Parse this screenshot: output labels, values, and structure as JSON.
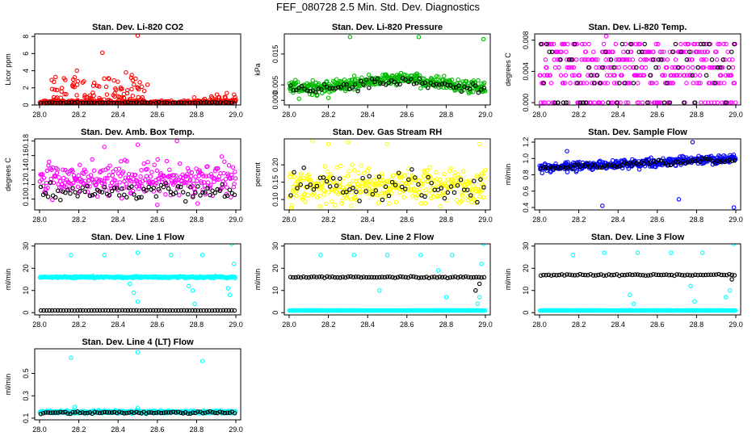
{
  "figure": {
    "title": "FEF_080728  2.5 Min. Std. Dev. Diagnostics"
  },
  "chart_data": [
    {
      "type": "scatter",
      "title": "Stan. Dev. Li-820 CO2",
      "ylabel": "Licor ppm",
      "xlim": [
        28.0,
        29.0
      ],
      "ylim": [
        0,
        8.3
      ],
      "xticks": [
        "28.0",
        "28.2",
        "28.4",
        "28.6",
        "28.8",
        "29.0"
      ],
      "yticks": [
        {
          "v": 0,
          "label": "0"
        },
        {
          "v": 2,
          "label": "2"
        },
        {
          "v": 4,
          "label": "4"
        },
        {
          "v": 6,
          "label": "6"
        },
        {
          "v": 8,
          "label": "8"
        }
      ],
      "series": [
        {
          "color": "#ff0000",
          "base": 0.3,
          "spread": 0.25,
          "count": 300,
          "bursts": [
            {
              "x0": 28.05,
              "x1": 28.55,
              "amp": 3.0,
              "n": 110
            },
            {
              "x0": 28.78,
              "x1": 29.0,
              "amp": 1.2,
              "n": 25
            }
          ],
          "outliers": [
            [
              28.32,
              6.1
            ],
            [
              28.5,
              8.1
            ],
            [
              28.19,
              4.0
            ],
            [
              28.44,
              3.8
            ],
            [
              28.47,
              3.5
            ]
          ]
        },
        {
          "color": "#000000",
          "base": 0.25,
          "spread": 0.1,
          "count": 70,
          "bursts": [],
          "outliers": []
        }
      ]
    },
    {
      "type": "scatter",
      "title": "Stan. Dev. Li-820 Pressure",
      "ylabel": "kPa",
      "xlim": [
        28.0,
        29.0
      ],
      "ylim": [
        -0.0015,
        0.0215
      ],
      "xticks": [
        "28.0",
        "28.2",
        "28.4",
        "28.6",
        "28.8",
        "29.0"
      ],
      "yticks": [
        {
          "v": 0,
          "label": "0.000"
        },
        {
          "v": 0.005,
          "label": "0.005"
        },
        {
          "v": 0.015,
          "label": "0.015"
        }
      ],
      "series": [
        {
          "color": "#00bb00",
          "base": 0.004,
          "spread": 0.002,
          "count": 420,
          "hump": 0.003,
          "bursts": [],
          "outliers": [
            [
              28.31,
              0.0205
            ],
            [
              28.66,
              0.0205
            ],
            [
              28.99,
              0.0198
            ],
            [
              28.05,
              0.0005
            ],
            [
              28.2,
              0.0008
            ]
          ]
        },
        {
          "color": "#000000",
          "base": 0.0035,
          "spread": 0.0015,
          "count": 70,
          "hump": 0.0025,
          "bursts": [],
          "outliers": []
        }
      ]
    },
    {
      "type": "scatter",
      "title": "Stan. Dev. Li-820 Temp.",
      "ylabel": "degrees C",
      "xlim": [
        28.0,
        29.0
      ],
      "ylim": [
        -0.0003,
        0.0088
      ],
      "xticks": [
        "28.0",
        "28.2",
        "28.4",
        "28.6",
        "28.8",
        "29.0"
      ],
      "yticks": [
        {
          "v": 0,
          "label": "0.000"
        },
        {
          "v": 0.004,
          "label": "0.004"
        },
        {
          "v": 0.008,
          "label": "0.008"
        }
      ],
      "levels": [
        0,
        0.0025,
        0.0035,
        0.0045,
        0.0055,
        0.0065,
        0.0075
      ],
      "series": [
        {
          "color": "#ff00ff",
          "count": 380,
          "quantized": true,
          "bursts": [],
          "outliers": [
            [
              28.34,
              0.0085
            ]
          ]
        },
        {
          "color": "#000000",
          "count": 70,
          "quantized": true,
          "bursts": [],
          "outliers": []
        }
      ]
    },
    {
      "type": "scatter",
      "title": "Stan. Dev. Amb. Box Temp.",
      "ylabel": "degrees C",
      "xlim": [
        28.0,
        29.0
      ],
      "ylim": [
        0.085,
        0.183
      ],
      "xticks": [
        "28.0",
        "28.2",
        "28.4",
        "28.6",
        "28.8",
        "29.0"
      ],
      "yticks": [
        {
          "v": 0.1,
          "label": "0.10"
        },
        {
          "v": 0.12,
          "label": "0.12"
        },
        {
          "v": 0.14,
          "label": "0.14"
        },
        {
          "v": 0.16,
          "label": "0.16"
        },
        {
          "v": 0.18,
          "label": "0.18"
        }
      ],
      "series": [
        {
          "color": "#ff00ff",
          "base": 0.127,
          "spread": 0.022,
          "count": 300,
          "bursts": [],
          "outliers": [
            [
              28.7,
              0.18
            ],
            [
              28.5,
              0.175
            ],
            [
              28.33,
              0.172
            ],
            [
              28.6,
              0.092
            ]
          ]
        },
        {
          "color": "#000000",
          "base": 0.11,
          "spread": 0.01,
          "count": 80,
          "bursts": [],
          "outliers": []
        }
      ]
    },
    {
      "type": "scatter",
      "title": "Stan. Dev. Gas Stream RH",
      "ylabel": "percent",
      "xlim": [
        28.0,
        29.0
      ],
      "ylim": [
        0.07,
        0.275
      ],
      "xticks": [
        "28.0",
        "28.2",
        "28.4",
        "28.6",
        "28.8",
        "29.0"
      ],
      "yticks": [
        {
          "v": 0.1,
          "label": "0.10"
        },
        {
          "v": 0.15,
          "label": "0.15"
        },
        {
          "v": 0.2,
          "label": "0.20"
        }
      ],
      "series": [
        {
          "color": "#ffff00",
          "base": 0.14,
          "spread": 0.05,
          "count": 360,
          "bursts": [],
          "outliers": [
            [
              28.12,
              0.27
            ],
            [
              28.2,
              0.26
            ],
            [
              28.3,
              0.265
            ],
            [
              28.5,
              0.26
            ],
            [
              28.97,
              0.26
            ]
          ]
        },
        {
          "color": "#000000",
          "base": 0.14,
          "spread": 0.045,
          "count": 60,
          "bursts": [],
          "outliers": []
        }
      ]
    },
    {
      "type": "scatter",
      "title": "Stan. Dev. Sample Flow",
      "ylabel": "ml/min",
      "xlim": [
        28.0,
        29.0
      ],
      "ylim": [
        0.37,
        1.24
      ],
      "xticks": [
        "28.0",
        "28.2",
        "28.4",
        "28.6",
        "28.8",
        "29.0"
      ],
      "yticks": [
        {
          "v": 0.4,
          "label": "0.4"
        },
        {
          "v": 0.6,
          "label": "0.6"
        },
        {
          "v": 0.8,
          "label": "0.8"
        },
        {
          "v": 1.0,
          "label": "1.0"
        },
        {
          "v": 1.2,
          "label": "1.2"
        }
      ],
      "series": [
        {
          "color": "#0000ff",
          "base": 0.88,
          "spread": 0.05,
          "count": 420,
          "trend": 0.12,
          "bursts": [],
          "outliers": [
            [
              28.32,
              0.42
            ],
            [
              28.78,
              1.2
            ],
            [
              28.71,
              0.5
            ],
            [
              28.99,
              0.4
            ],
            [
              28.14,
              1.09
            ]
          ]
        },
        {
          "color": "#000000",
          "base": 0.88,
          "spread": 0.03,
          "count": 80,
          "trend": 0.1,
          "bursts": [],
          "outliers": []
        }
      ]
    },
    {
      "type": "scatter",
      "title": "Stan. Dev. Line 1 Flow",
      "ylabel": "ml/min",
      "xlim": [
        28.0,
        29.0
      ],
      "ylim": [
        -1,
        31
      ],
      "xticks": [
        "28.0",
        "28.2",
        "28.4",
        "28.6",
        "28.8",
        "29.0"
      ],
      "yticks": [
        {
          "v": 0,
          "label": "0"
        },
        {
          "v": 10,
          "label": "10"
        },
        {
          "v": 20,
          "label": "20"
        },
        {
          "v": 30,
          "label": "30"
        }
      ],
      "series": [
        {
          "color": "#00ffff",
          "base": 16.0,
          "spread": 0.4,
          "count": 260,
          "bursts": [],
          "outliers": [
            [
              28.16,
              26
            ],
            [
              28.33,
              26
            ],
            [
              28.5,
              27
            ],
            [
              28.67,
              26
            ],
            [
              28.83,
              26
            ],
            [
              28.98,
              31
            ],
            [
              28.46,
              13
            ],
            [
              28.48,
              9
            ],
            [
              28.5,
              5
            ],
            [
              28.76,
              12
            ],
            [
              28.78,
              10
            ],
            [
              28.79,
              4
            ],
            [
              28.96,
              11
            ],
            [
              28.97,
              8
            ],
            [
              28.99,
              22
            ]
          ]
        },
        {
          "color": "#000000",
          "base": 1.0,
          "spread": 0.05,
          "count": 70,
          "bursts": [],
          "outliers": []
        }
      ]
    },
    {
      "type": "scatter",
      "title": "Stan. Dev. Line 2 Flow",
      "ylabel": "ml/min",
      "xlim": [
        28.0,
        29.0
      ],
      "ylim": [
        -1,
        31
      ],
      "xticks": [
        "28.0",
        "28.2",
        "28.4",
        "28.6",
        "28.8",
        "29.0"
      ],
      "yticks": [
        {
          "v": 0,
          "label": "0"
        },
        {
          "v": 10,
          "label": "10"
        },
        {
          "v": 20,
          "label": "20"
        },
        {
          "v": 30,
          "label": "30"
        }
      ],
      "series": [
        {
          "color": "#00ffff",
          "base": 1.0,
          "spread": 0.05,
          "count": 260,
          "bursts": [],
          "outliers": [
            [
              28.16,
              26
            ],
            [
              28.33,
              26
            ],
            [
              28.5,
              26
            ],
            [
              28.67,
              26
            ],
            [
              28.83,
              26
            ],
            [
              28.99,
              31
            ],
            [
              28.46,
              10
            ],
            [
              28.76,
              19
            ],
            [
              28.8,
              7
            ],
            [
              28.96,
              4
            ],
            [
              28.97,
              7
            ],
            [
              28.98,
              22
            ]
          ]
        },
        {
          "color": "#000000",
          "base": 16.0,
          "spread": 0.3,
          "count": 75,
          "bursts": [],
          "outliers": [
            [
              28.95,
              10
            ],
            [
              28.97,
              13
            ]
          ]
        }
      ]
    },
    {
      "type": "scatter",
      "title": "Stan. Dev. Line 3 Flow",
      "ylabel": "ml/min",
      "xlim": [
        28.0,
        29.0
      ],
      "ylim": [
        -1,
        31
      ],
      "xticks": [
        "28.0",
        "28.2",
        "28.4",
        "28.6",
        "28.8",
        "29.0"
      ],
      "yticks": [
        {
          "v": 0,
          "label": "0"
        },
        {
          "v": 10,
          "label": "10"
        },
        {
          "v": 20,
          "label": "20"
        },
        {
          "v": 30,
          "label": "30"
        }
      ],
      "series": [
        {
          "color": "#00ffff",
          "base": 1.0,
          "spread": 0.05,
          "count": 260,
          "bursts": [],
          "outliers": [
            [
              28.17,
              26
            ],
            [
              28.33,
              27
            ],
            [
              28.5,
              27
            ],
            [
              28.67,
              27
            ],
            [
              28.83,
              27
            ],
            [
              28.99,
              31
            ],
            [
              28.46,
              8
            ],
            [
              28.48,
              4
            ],
            [
              28.77,
              12
            ],
            [
              28.79,
              5
            ],
            [
              28.95,
              7
            ],
            [
              28.97,
              10
            ]
          ]
        },
        {
          "color": "#000000",
          "base": 17.0,
          "spread": 0.3,
          "count": 75,
          "bursts": [],
          "outliers": [
            [
              28.98,
              15
            ]
          ]
        }
      ]
    },
    {
      "type": "scatter",
      "title": "Stan. Dev. Line 4 (LT) Flow",
      "ylabel": "ml/min",
      "xlim": [
        28.0,
        29.0
      ],
      "ylim": [
        0.085,
        0.72
      ],
      "xticks": [
        "28.0",
        "28.2",
        "28.4",
        "28.6",
        "28.8",
        "29.0"
      ],
      "yticks": [
        {
          "v": 0.1,
          "label": "0.1"
        },
        {
          "v": 0.3,
          "label": "0.3"
        },
        {
          "v": 0.5,
          "label": "0.5"
        }
      ],
      "series": [
        {
          "color": "#00ffff",
          "base": 0.155,
          "spread": 0.012,
          "count": 420,
          "bursts": [],
          "outliers": [
            [
              28.16,
              0.64
            ],
            [
              28.5,
              0.69
            ],
            [
              28.83,
              0.61
            ],
            [
              28.18,
              0.2
            ],
            [
              28.5,
              0.19
            ]
          ]
        },
        {
          "color": "#000000",
          "base": 0.15,
          "spread": 0.01,
          "count": 80,
          "bursts": [],
          "outliers": []
        }
      ]
    }
  ]
}
